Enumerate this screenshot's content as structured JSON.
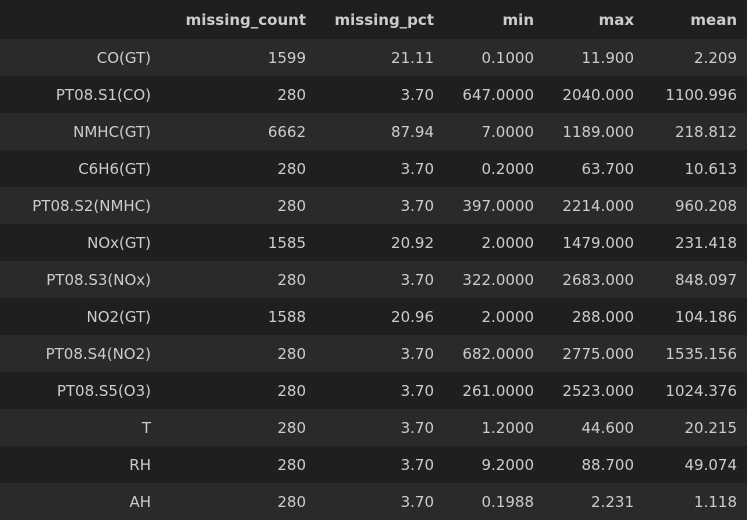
{
  "table": {
    "columns": [
      "",
      "missing_count",
      "missing_pct",
      "min",
      "max",
      "mean"
    ],
    "rows": [
      {
        "index": "CO(GT)",
        "missing_count": "1599",
        "missing_pct": "21.11",
        "min": "0.1000",
        "max": "11.900",
        "mean": "2.209"
      },
      {
        "index": "PT08.S1(CO)",
        "missing_count": "280",
        "missing_pct": "3.70",
        "min": "647.0000",
        "max": "2040.000",
        "mean": "1100.996"
      },
      {
        "index": "NMHC(GT)",
        "missing_count": "6662",
        "missing_pct": "87.94",
        "min": "7.0000",
        "max": "1189.000",
        "mean": "218.812"
      },
      {
        "index": "C6H6(GT)",
        "missing_count": "280",
        "missing_pct": "3.70",
        "min": "0.2000",
        "max": "63.700",
        "mean": "10.613"
      },
      {
        "index": "PT08.S2(NMHC)",
        "missing_count": "280",
        "missing_pct": "3.70",
        "min": "397.0000",
        "max": "2214.000",
        "mean": "960.208"
      },
      {
        "index": "NOx(GT)",
        "missing_count": "1585",
        "missing_pct": "20.92",
        "min": "2.0000",
        "max": "1479.000",
        "mean": "231.418"
      },
      {
        "index": "PT08.S3(NOx)",
        "missing_count": "280",
        "missing_pct": "3.70",
        "min": "322.0000",
        "max": "2683.000",
        "mean": "848.097"
      },
      {
        "index": "NO2(GT)",
        "missing_count": "1588",
        "missing_pct": "20.96",
        "min": "2.0000",
        "max": "288.000",
        "mean": "104.186"
      },
      {
        "index": "PT08.S4(NO2)",
        "missing_count": "280",
        "missing_pct": "3.70",
        "min": "682.0000",
        "max": "2775.000",
        "mean": "1535.156"
      },
      {
        "index": "PT08.S5(O3)",
        "missing_count": "280",
        "missing_pct": "3.70",
        "min": "261.0000",
        "max": "2523.000",
        "mean": "1024.376"
      },
      {
        "index": "T",
        "missing_count": "280",
        "missing_pct": "3.70",
        "min": "1.2000",
        "max": "44.600",
        "mean": "20.215"
      },
      {
        "index": "RH",
        "missing_count": "280",
        "missing_pct": "3.70",
        "min": "9.2000",
        "max": "88.700",
        "mean": "49.074"
      },
      {
        "index": "AH",
        "missing_count": "280",
        "missing_pct": "3.70",
        "min": "0.1988",
        "max": "2.231",
        "mean": "1.118"
      }
    ]
  }
}
